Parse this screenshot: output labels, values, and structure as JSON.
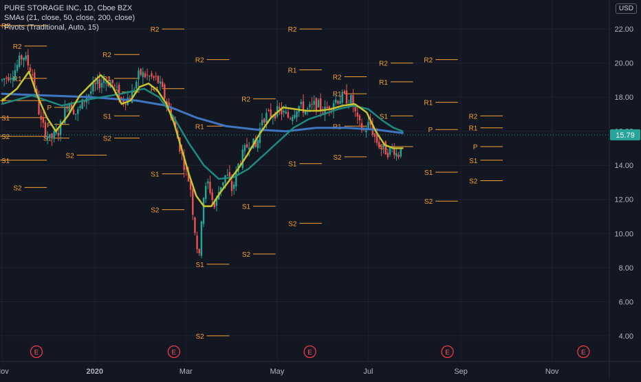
{
  "header": {
    "title": "PURE STORAGE INC, 1D, Cboe BZX",
    "indicator_sma": "SMAs (21, close, 50, close, 200, close)",
    "indicator_pivots": "Pivots (Traditional, Auto, 15)",
    "currency": "USD"
  },
  "colors": {
    "background": "#131722",
    "grid": "#1e2230",
    "text": "#b2b5be",
    "up": "#26a69a",
    "down": "#ef5350",
    "sma21": "#c8c42e",
    "sma50": "#1f8a80",
    "sma200": "#3f76c2",
    "pivot": "#f7a035",
    "price_badge": "#26a69a",
    "earnings": "#f23645"
  },
  "chart_data": {
    "type": "candlestick",
    "y_axis": {
      "ticks": [
        "4.00",
        "6.00",
        "8.00",
        "10.00",
        "12.00",
        "14.00",
        "16.00",
        "18.00",
        "20.00",
        "22.00"
      ],
      "min": 2.5,
      "max": 23.7
    },
    "x_axis": {
      "ticks": [
        "Nov",
        "2020",
        "Mar",
        "May",
        "Jul",
        "Sep",
        "Nov"
      ],
      "tick_days": [
        0,
        62,
        123,
        184,
        245,
        307,
        368
      ]
    },
    "last_price": "15.79",
    "last_price_value": 15.79,
    "earnings_markers": {
      "label": "E",
      "days": [
        23,
        115,
        206,
        298,
        389
      ]
    },
    "pivot_lines": [
      {
        "label": "R2",
        "value": 22.2,
        "from": -5,
        "to": 30
      },
      {
        "label": "P",
        "value": 17.8,
        "from": -5,
        "to": 30
      },
      {
        "label": "S1",
        "value": 16.8,
        "from": -5,
        "to": 30
      },
      {
        "label": "S2",
        "value": 15.7,
        "from": -5,
        "to": 30
      },
      {
        "label": "S1",
        "value": 14.3,
        "from": -5,
        "to": 30
      },
      {
        "label": "S2",
        "value": 12.7,
        "from": 15,
        "to": 30
      },
      {
        "label": "R2",
        "value": 21.0,
        "from": 15,
        "to": 30
      },
      {
        "label": "R1",
        "value": 19.1,
        "from": 15,
        "to": 30
      },
      {
        "label": "P",
        "value": 17.4,
        "from": 35,
        "to": 45
      },
      {
        "label": "P",
        "value": 16.4,
        "from": 35,
        "to": 45
      },
      {
        "label": "S1",
        "value": 15.6,
        "from": 35,
        "to": 45
      },
      {
        "label": "S2",
        "value": 14.6,
        "from": 50,
        "to": 70
      },
      {
        "label": "S1",
        "value": 16.9,
        "from": 75,
        "to": 92
      },
      {
        "label": "S2",
        "value": 15.6,
        "from": 75,
        "to": 92
      },
      {
        "label": "R2",
        "value": 20.5,
        "from": 75,
        "to": 92
      },
      {
        "label": "R1",
        "value": 19.1,
        "from": 75,
        "to": 92
      },
      {
        "label": "P",
        "value": 18.3,
        "from": 80,
        "to": 92
      },
      {
        "label": "R2",
        "value": 22.0,
        "from": 107,
        "to": 122
      },
      {
        "label": "R1",
        "value": 18.5,
        "from": 107,
        "to": 122
      },
      {
        "label": "S1",
        "value": 13.5,
        "from": 107,
        "to": 122
      },
      {
        "label": "S2",
        "value": 11.4,
        "from": 107,
        "to": 122
      },
      {
        "label": "R2",
        "value": 20.2,
        "from": 137,
        "to": 152
      },
      {
        "label": "R1",
        "value": 16.3,
        "from": 137,
        "to": 152
      },
      {
        "label": "S1",
        "value": 8.2,
        "from": 137,
        "to": 152
      },
      {
        "label": "S2",
        "value": 4.0,
        "from": 137,
        "to": 152
      },
      {
        "label": "R2",
        "value": 17.9,
        "from": 168,
        "to": 183
      },
      {
        "label": "S2",
        "value": 8.8,
        "from": 168,
        "to": 183
      },
      {
        "label": "S1",
        "value": 11.6,
        "from": 168,
        "to": 183
      },
      {
        "label": "R2",
        "value": 22.0,
        "from": 199,
        "to": 214
      },
      {
        "label": "R1",
        "value": 19.6,
        "from": 199,
        "to": 214
      },
      {
        "label": "S1",
        "value": 14.1,
        "from": 199,
        "to": 214
      },
      {
        "label": "S2",
        "value": 10.6,
        "from": 199,
        "to": 214
      },
      {
        "label": "R1",
        "value": 16.3,
        "from": 229,
        "to": 244
      },
      {
        "label": "R2",
        "value": 19.2,
        "from": 229,
        "to": 244
      },
      {
        "label": "R1",
        "value": 18.2,
        "from": 229,
        "to": 244
      },
      {
        "label": "S2",
        "value": 14.5,
        "from": 229,
        "to": 244
      },
      {
        "label": "R2",
        "value": 20.0,
        "from": 260,
        "to": 275
      },
      {
        "label": "R1",
        "value": 18.9,
        "from": 260,
        "to": 275
      },
      {
        "label": "S1",
        "value": 16.9,
        "from": 260,
        "to": 275
      },
      {
        "label": "S2",
        "value": 15.1,
        "from": 260,
        "to": 275
      },
      {
        "label": "R2",
        "value": 20.2,
        "from": 290,
        "to": 305
      },
      {
        "label": "R1",
        "value": 17.7,
        "from": 290,
        "to": 305
      },
      {
        "label": "P",
        "value": 16.1,
        "from": 290,
        "to": 305
      },
      {
        "label": "S1",
        "value": 13.6,
        "from": 290,
        "to": 305
      },
      {
        "label": "S2",
        "value": 11.9,
        "from": 290,
        "to": 305
      },
      {
        "label": "R2",
        "value": 16.9,
        "from": 320,
        "to": 335
      },
      {
        "label": "R1",
        "value": 16.2,
        "from": 320,
        "to": 335
      },
      {
        "label": "P",
        "value": 15.1,
        "from": 320,
        "to": 335
      },
      {
        "label": "S1",
        "value": 14.3,
        "from": 320,
        "to": 335
      },
      {
        "label": "S2",
        "value": 13.1,
        "from": 320,
        "to": 335
      }
    ],
    "sma21": [
      [
        0,
        17.8
      ],
      [
        10,
        18.5
      ],
      [
        18,
        19.5
      ],
      [
        24,
        18.0
      ],
      [
        30,
        16.8
      ],
      [
        36,
        16.0
      ],
      [
        44,
        16.9
      ],
      [
        52,
        18.1
      ],
      [
        60,
        18.8
      ],
      [
        66,
        19.3
      ],
      [
        74,
        18.6
      ],
      [
        80,
        17.6
      ],
      [
        86,
        17.8
      ],
      [
        92,
        18.6
      ],
      [
        98,
        18.8
      ],
      [
        104,
        18.4
      ],
      [
        110,
        17.6
      ],
      [
        115,
        16.5
      ],
      [
        120,
        15.0
      ],
      [
        125,
        13.5
      ],
      [
        130,
        12.2
      ],
      [
        135,
        11.6
      ],
      [
        140,
        11.6
      ],
      [
        146,
        12.4
      ],
      [
        152,
        13.1
      ],
      [
        158,
        13.8
      ],
      [
        164,
        14.6
      ],
      [
        172,
        15.8
      ],
      [
        180,
        16.8
      ],
      [
        188,
        17.4
      ],
      [
        196,
        17.3
      ],
      [
        204,
        17.2
      ],
      [
        212,
        17.2
      ],
      [
        220,
        17.3
      ],
      [
        228,
        17.5
      ],
      [
        236,
        17.6
      ],
      [
        244,
        17.1
      ],
      [
        250,
        16.0
      ],
      [
        256,
        15.2
      ],
      [
        262,
        15.0
      ],
      [
        268,
        15.0
      ]
    ],
    "sma50": [
      [
        0,
        17.6
      ],
      [
        20,
        18.1
      ],
      [
        40,
        17.5
      ],
      [
        60,
        17.9
      ],
      [
        80,
        18.2
      ],
      [
        95,
        18.5
      ],
      [
        105,
        18.0
      ],
      [
        115,
        16.8
      ],
      [
        125,
        15.3
      ],
      [
        135,
        14.0
      ],
      [
        145,
        13.2
      ],
      [
        155,
        13.3
      ],
      [
        165,
        13.8
      ],
      [
        175,
        14.6
      ],
      [
        185,
        15.4
      ],
      [
        195,
        16.2
      ],
      [
        205,
        16.7
      ],
      [
        215,
        17.0
      ],
      [
        225,
        17.3
      ],
      [
        235,
        17.5
      ],
      [
        245,
        17.3
      ],
      [
        255,
        16.6
      ],
      [
        262,
        16.2
      ],
      [
        268,
        16.0
      ]
    ],
    "sma200": [
      [
        0,
        18.2
      ],
      [
        30,
        18.1
      ],
      [
        60,
        18.0
      ],
      [
        90,
        17.8
      ],
      [
        110,
        17.5
      ],
      [
        130,
        16.8
      ],
      [
        150,
        16.3
      ],
      [
        170,
        16.1
      ],
      [
        190,
        16.0
      ],
      [
        210,
        16.2
      ],
      [
        230,
        16.2
      ],
      [
        250,
        16.1
      ],
      [
        268,
        15.9
      ]
    ],
    "price_path": [
      [
        0,
        19.0
      ],
      [
        8,
        19.5
      ],
      [
        14,
        20.5
      ],
      [
        20,
        19.5
      ],
      [
        26,
        16.5
      ],
      [
        32,
        15.5
      ],
      [
        38,
        16.0
      ],
      [
        44,
        17.8
      ],
      [
        50,
        17.0
      ],
      [
        56,
        18.0
      ],
      [
        62,
        18.6
      ],
      [
        68,
        19.0
      ],
      [
        74,
        18.8
      ],
      [
        80,
        17.8
      ],
      [
        86,
        18.0
      ],
      [
        92,
        19.4
      ],
      [
        98,
        19.2
      ],
      [
        104,
        19.0
      ],
      [
        108,
        18.2
      ],
      [
        114,
        16.8
      ],
      [
        118,
        15.4
      ],
      [
        122,
        14.0
      ],
      [
        126,
        12.8
      ],
      [
        128,
        11.0
      ],
      [
        130,
        9.5
      ],
      [
        132,
        8.5
      ],
      [
        134,
        12.0
      ],
      [
        138,
        13.0
      ],
      [
        142,
        11.5
      ],
      [
        146,
        12.8
      ],
      [
        150,
        13.5
      ],
      [
        154,
        12.5
      ],
      [
        158,
        14.0
      ],
      [
        162,
        14.8
      ],
      [
        166,
        15.5
      ],
      [
        170,
        15.0
      ],
      [
        174,
        16.8
      ],
      [
        180,
        17.0
      ],
      [
        186,
        17.2
      ],
      [
        192,
        16.8
      ],
      [
        198,
        17.5
      ],
      [
        204,
        17.2
      ],
      [
        210,
        17.6
      ],
      [
        216,
        17.2
      ],
      [
        222,
        17.8
      ],
      [
        228,
        18.0
      ],
      [
        234,
        17.8
      ],
      [
        238,
        16.5
      ],
      [
        242,
        16.0
      ],
      [
        246,
        16.5
      ],
      [
        250,
        15.5
      ],
      [
        254,
        15.0
      ],
      [
        258,
        14.8
      ],
      [
        262,
        15.0
      ],
      [
        265,
        14.5
      ],
      [
        268,
        15.8
      ]
    ]
  }
}
